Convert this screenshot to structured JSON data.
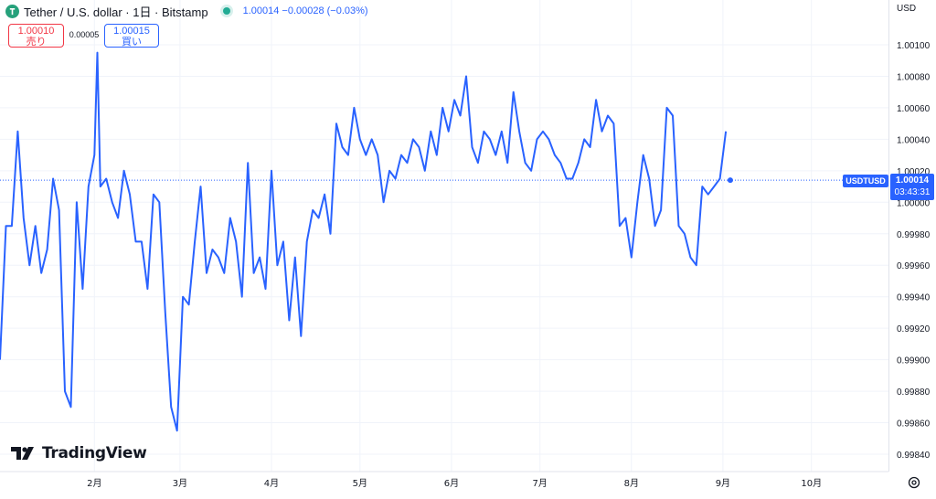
{
  "header": {
    "symbol_title": "Tether / U.S. dollar · 1日 · Bitstamp",
    "quote": "1.00014  −0.00028 (−0.03%)"
  },
  "trade": {
    "sell_price": "1.00010",
    "sell_label": "売り",
    "spread": "0.00005",
    "buy_price": "1.00015",
    "buy_label": "買い"
  },
  "currency": "USD",
  "brand": "TradingView",
  "price_tag": {
    "symbol": "USDTUSD",
    "value": "1.00014",
    "countdown": "03:43:31"
  },
  "colors": {
    "line": "#2962ff",
    "sell": "#f23645",
    "buy": "#2962ff",
    "live_dot": "#22ab94",
    "tether_logo": "#26a17b"
  },
  "icons": [
    "tether-logo-icon",
    "live-status-dot-icon",
    "tradingview-logo-icon",
    "settings-icon"
  ],
  "chart_data": {
    "type": "line",
    "series_name": "USDTUSD",
    "y_ticks": [
      "1.00100",
      "1.00080",
      "1.00060",
      "1.00040",
      "1.00020",
      "1.00000",
      "0.99980",
      "0.99960",
      "0.99940",
      "0.99920",
      "0.99900",
      "0.99880",
      "0.99860",
      "0.99840"
    ],
    "ylim": [
      0.99835,
      1.0011
    ],
    "x_ticks": [
      "2月",
      "3月",
      "4月",
      "5月",
      "6月",
      "7月",
      "8月",
      "9月",
      "10月"
    ],
    "tick_days": [
      32,
      61,
      92,
      122,
      153,
      183,
      214,
      245,
      275
    ],
    "xlim": [
      0,
      285
    ],
    "current_price": 1.00014,
    "grid": true,
    "x": [
      0,
      2,
      4,
      6,
      8,
      10,
      12,
      14,
      16,
      18,
      20,
      22,
      24,
      26,
      28,
      30,
      32,
      33,
      34,
      36,
      38,
      40,
      42,
      44,
      46,
      48,
      50,
      52,
      54,
      56,
      58,
      60,
      62,
      64,
      66,
      68,
      70,
      72,
      74,
      76,
      78,
      80,
      82,
      84,
      86,
      88,
      90,
      92,
      94,
      96,
      98,
      100,
      102,
      104,
      106,
      108,
      110,
      112,
      114,
      116,
      118,
      120,
      122,
      124,
      126,
      128,
      130,
      132,
      134,
      136,
      138,
      140,
      142,
      144,
      146,
      148,
      150,
      152,
      154,
      156,
      158,
      160,
      162,
      164,
      166,
      168,
      170,
      172,
      174,
      176,
      178,
      180,
      182,
      184,
      186,
      188,
      190,
      192,
      194,
      196,
      198,
      200,
      202,
      204,
      206,
      208,
      210,
      212,
      214,
      216,
      218,
      220,
      222,
      224,
      226,
      228,
      230,
      232,
      234,
      236,
      238,
      240,
      242,
      244,
      246
    ],
    "y": [
      0.999,
      0.99985,
      0.99985,
      1.00045,
      0.9999,
      0.9996,
      0.99985,
      0.99955,
      0.9997,
      1.00015,
      0.99995,
      0.9988,
      0.9987,
      1.0,
      0.99945,
      1.0001,
      1.0003,
      1.00095,
      1.0001,
      1.00015,
      1.0,
      0.9999,
      1.0002,
      1.00005,
      0.99975,
      0.99975,
      0.99945,
      1.00005,
      1.0,
      0.9993,
      0.9987,
      0.99855,
      0.9994,
      0.99935,
      0.99975,
      1.0001,
      0.99955,
      0.9997,
      0.99965,
      0.99955,
      0.9999,
      0.99975,
      0.9994,
      1.00025,
      0.99955,
      0.99965,
      0.99945,
      1.0002,
      0.9996,
      0.99975,
      0.99925,
      0.99965,
      0.99915,
      0.99975,
      0.99995,
      0.9999,
      1.00005,
      0.9998,
      1.0005,
      1.00035,
      1.0003,
      1.0006,
      1.0004,
      1.0003,
      1.0004,
      1.0003,
      1.0,
      1.0002,
      1.00015,
      1.0003,
      1.00025,
      1.0004,
      1.00035,
      1.0002,
      1.00045,
      1.0003,
      1.0006,
      1.00045,
      1.00065,
      1.00055,
      1.0008,
      1.00035,
      1.00025,
      1.00045,
      1.0004,
      1.0003,
      1.00045,
      1.00025,
      1.0007,
      1.00045,
      1.00025,
      1.0002,
      1.0004,
      1.00045,
      1.0004,
      1.0003,
      1.00025,
      1.00015,
      1.00015,
      1.00025,
      1.0004,
      1.00035,
      1.00065,
      1.00045,
      1.00055,
      1.0005,
      0.99985,
      0.9999,
      0.99965,
      1.0,
      1.0003,
      1.00015,
      0.99985,
      0.99995,
      1.0006,
      1.00055,
      0.99985,
      0.9998,
      0.99965,
      0.9996,
      1.0001,
      1.00005,
      1.0001,
      1.00015,
      1.00045
    ]
  }
}
